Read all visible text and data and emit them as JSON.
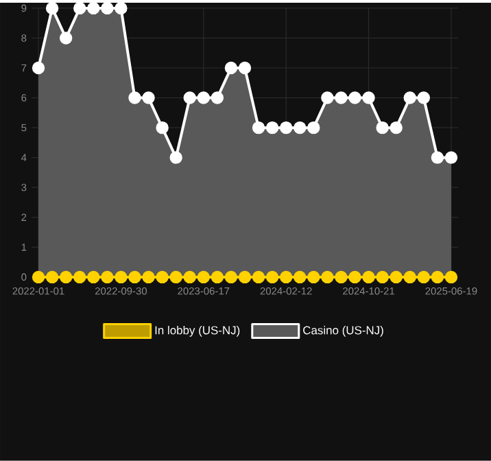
{
  "chart_data": {
    "type": "line",
    "categories": [
      "2022-01-01",
      null,
      null,
      null,
      null,
      null,
      "2022-09-30",
      null,
      null,
      null,
      null,
      null,
      "2023-06-17",
      null,
      null,
      null,
      null,
      null,
      "2024-02-12",
      null,
      null,
      null,
      null,
      null,
      "2024-10-21",
      null,
      null,
      null,
      null,
      null,
      "2025-06-19"
    ],
    "series": [
      {
        "name": "In lobby (US-NJ)",
        "color": "#ffd200",
        "values": [
          0,
          0,
          0,
          0,
          0,
          0,
          0,
          0,
          0,
          0,
          0,
          0,
          0,
          0,
          0,
          0,
          0,
          0,
          0,
          0,
          0,
          0,
          0,
          0,
          0,
          0,
          0,
          0,
          0,
          0,
          0
        ]
      },
      {
        "name": "Casino (US-NJ)",
        "type": "area",
        "color": "#ffffff",
        "values": [
          7,
          9,
          8,
          9,
          9,
          9,
          9,
          6,
          6,
          5,
          4,
          6,
          6,
          6,
          7,
          7,
          5,
          5,
          5,
          5,
          5,
          6,
          6,
          6,
          6,
          5,
          5,
          6,
          6,
          4,
          4
        ]
      }
    ],
    "ylim": [
      0,
      9
    ],
    "yticks": [
      0,
      1,
      2,
      3,
      4,
      5,
      6,
      7,
      8,
      9
    ],
    "grid": true,
    "legend": "bottom",
    "marker": "circle"
  }
}
